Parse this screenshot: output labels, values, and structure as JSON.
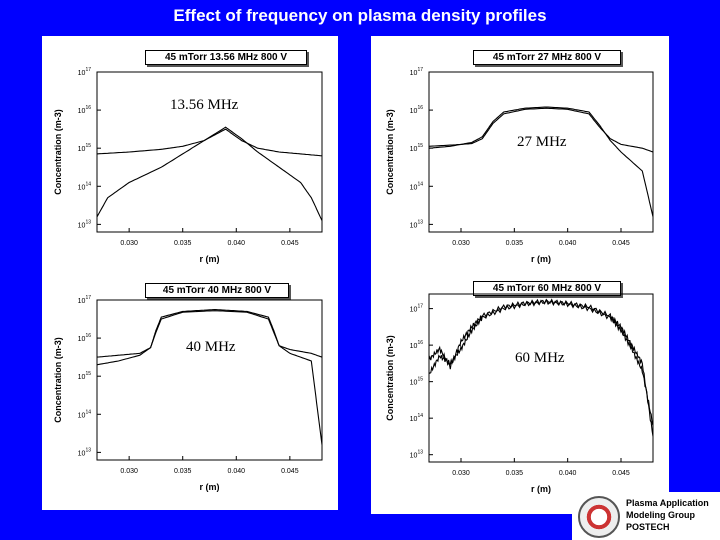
{
  "page_title": "Effect of frequency on plasma density profiles",
  "footer": {
    "group_line1": "Plasma Application",
    "group_line2": "Modeling Group",
    "group_line3": "POSTECH"
  },
  "chart_data": [
    {
      "type": "line",
      "title": "45 mTorr  13.56 MHz  800 V",
      "annotation": "13.56 MHz",
      "xlabel": "r (m)",
      "ylabel": "Concentration (m-3)",
      "xlim": [
        0.027,
        0.048
      ],
      "ylim_log10": [
        12.8,
        17
      ],
      "xticks": [
        "0.030",
        "0.035",
        "0.040",
        "0.045"
      ],
      "yticks": [
        "10^13",
        "10^14",
        "10^15",
        "10^16",
        "10^17"
      ],
      "series": [
        {
          "x": [
            0.027,
            0.03,
            0.033,
            0.035,
            0.037,
            0.039,
            0.0405,
            0.042,
            0.044,
            0.046,
            0.047,
            0.048
          ],
          "log10y": [
            14.85,
            14.9,
            14.97,
            15.05,
            15.2,
            15.55,
            15.25,
            14.9,
            14.5,
            14.1,
            13.7,
            13.1
          ]
        },
        {
          "x": [
            0.027,
            0.028,
            0.03,
            0.033,
            0.035,
            0.037,
            0.039,
            0.0405,
            0.042,
            0.044,
            0.046,
            0.048
          ],
          "log10y": [
            13.2,
            13.7,
            14.1,
            14.5,
            14.85,
            15.2,
            15.5,
            15.2,
            15.0,
            14.9,
            14.85,
            14.8
          ]
        }
      ]
    },
    {
      "type": "line",
      "title": "45 mTorr  27 MHz  800 V",
      "annotation": "27 MHz",
      "xlabel": "r (m)",
      "ylabel": "Concentration (m-3)",
      "xlim": [
        0.027,
        0.048
      ],
      "ylim_log10": [
        12.8,
        17
      ],
      "xticks": [
        "0.030",
        "0.035",
        "0.040",
        "0.045"
      ],
      "yticks": [
        "10^13",
        "10^14",
        "10^15",
        "10^16",
        "10^17"
      ],
      "series": [
        {
          "x": [
            0.027,
            0.029,
            0.031,
            0.032,
            0.033,
            0.034,
            0.036,
            0.038,
            0.04,
            0.042,
            0.043,
            0.044,
            0.045,
            0.047,
            0.048
          ],
          "log10y": [
            15.0,
            15.05,
            15.15,
            15.3,
            15.7,
            15.95,
            16.05,
            16.08,
            16.05,
            15.95,
            15.6,
            15.2,
            14.9,
            14.4,
            13.2
          ]
        },
        {
          "x": [
            0.027,
            0.029,
            0.031,
            0.032,
            0.033,
            0.034,
            0.036,
            0.038,
            0.04,
            0.042,
            0.043,
            0.044,
            0.045,
            0.047,
            0.048
          ],
          "log10y": [
            15.05,
            15.08,
            15.12,
            15.25,
            15.65,
            15.9,
            16.02,
            16.05,
            16.02,
            15.9,
            15.55,
            15.25,
            15.1,
            15.0,
            14.9
          ]
        }
      ]
    },
    {
      "type": "line",
      "title": "45 mTorr  40 MHz  800 V",
      "annotation": "40 MHz",
      "xlabel": "r (m)",
      "ylabel": "Concentration (m-3)",
      "xlim": [
        0.027,
        0.048
      ],
      "ylim_log10": [
        12.8,
        17
      ],
      "xticks": [
        "0.030",
        "0.035",
        "0.040",
        "0.045"
      ],
      "yticks": [
        "10^13",
        "10^14",
        "10^15",
        "10^16",
        "10^17"
      ],
      "series": [
        {
          "x": [
            0.027,
            0.029,
            0.031,
            0.032,
            0.0325,
            0.033,
            0.035,
            0.038,
            0.041,
            0.043,
            0.0435,
            0.044,
            0.045,
            0.047,
            0.048
          ],
          "log10y": [
            15.3,
            15.4,
            15.55,
            15.75,
            16.2,
            16.55,
            16.7,
            16.75,
            16.7,
            16.55,
            16.2,
            15.8,
            15.6,
            15.4,
            13.2
          ]
        },
        {
          "x": [
            0.027,
            0.029,
            0.031,
            0.032,
            0.0325,
            0.033,
            0.035,
            0.038,
            0.041,
            0.043,
            0.0435,
            0.044,
            0.045,
            0.047,
            0.048
          ],
          "log10y": [
            15.5,
            15.55,
            15.6,
            15.75,
            16.15,
            16.5,
            16.68,
            16.72,
            16.68,
            16.5,
            16.15,
            15.8,
            15.7,
            15.6,
            15.5
          ]
        }
      ]
    },
    {
      "type": "line",
      "title": "45 mTorr  60 MHz  800 V",
      "annotation": "60 MHz",
      "xlabel": "r (m)",
      "ylabel": "Concentration (m-3)",
      "xlim": [
        0.027,
        0.048
      ],
      "ylim_log10": [
        12.8,
        17.4
      ],
      "xticks": [
        "0.030",
        "0.035",
        "0.040",
        "0.045"
      ],
      "yticks": [
        "10^13",
        "10^14",
        "10^15",
        "10^16",
        "10^17"
      ],
      "series": [
        {
          "x": [
            0.027,
            0.028,
            0.029,
            0.03,
            0.031,
            0.032,
            0.034,
            0.036,
            0.038,
            0.04,
            0.042,
            0.044,
            0.045,
            0.046,
            0.047,
            0.048
          ],
          "log10y": [
            15.6,
            15.9,
            15.4,
            16.1,
            16.5,
            16.8,
            17.05,
            17.15,
            17.2,
            17.15,
            17.05,
            16.8,
            16.5,
            16.0,
            15.5,
            13.5
          ],
          "noisy": true
        },
        {
          "x": [
            0.027,
            0.028,
            0.029,
            0.03,
            0.031,
            0.032,
            0.034,
            0.036,
            0.038,
            0.04,
            0.042,
            0.044,
            0.045,
            0.046,
            0.047,
            0.048
          ],
          "log10y": [
            15.2,
            15.7,
            15.5,
            15.9,
            16.4,
            16.75,
            17.0,
            17.12,
            17.18,
            17.12,
            17.0,
            16.75,
            16.4,
            15.9,
            15.3,
            13.8
          ],
          "noisy": true
        }
      ]
    }
  ]
}
